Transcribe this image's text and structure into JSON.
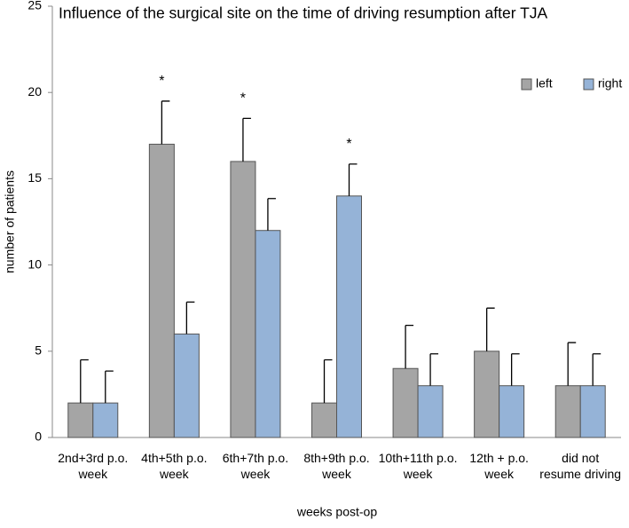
{
  "chart_data": {
    "type": "bar",
    "title": "Influence of the surgical site on the time of driving resumption after TJA",
    "x_label": "weeks post-op",
    "y_label": "number of patients",
    "categories": [
      "2nd+3rd p.o. week",
      "4th+5th p.o. week",
      "6th+7th p.o. week",
      "8th+9th p.o. week",
      "10th+11th p.o. week",
      "12th + p.o. week",
      "did not resume driving"
    ],
    "series": [
      {
        "name": "left",
        "color": "#a5a5a5",
        "values": [
          2,
          17,
          16,
          2,
          4,
          5,
          3
        ],
        "errors": [
          2.5,
          2.5,
          2.5,
          2.5,
          2.5,
          2.5,
          2.5
        ],
        "annotations": [
          null,
          "*",
          "*",
          null,
          null,
          null,
          null
        ]
      },
      {
        "name": "right",
        "color": "#95b3d7",
        "values": [
          2,
          6,
          12,
          14,
          3,
          3,
          3
        ],
        "errors": [
          1.85,
          1.85,
          1.85,
          1.85,
          1.85,
          1.85,
          1.85
        ],
        "annotations": [
          null,
          null,
          null,
          "*",
          null,
          null,
          null
        ]
      }
    ],
    "ylim": [
      0,
      25
    ],
    "yticks": [
      0,
      5,
      10,
      15,
      20,
      25
    ],
    "grid": false,
    "legend": "top-right"
  }
}
